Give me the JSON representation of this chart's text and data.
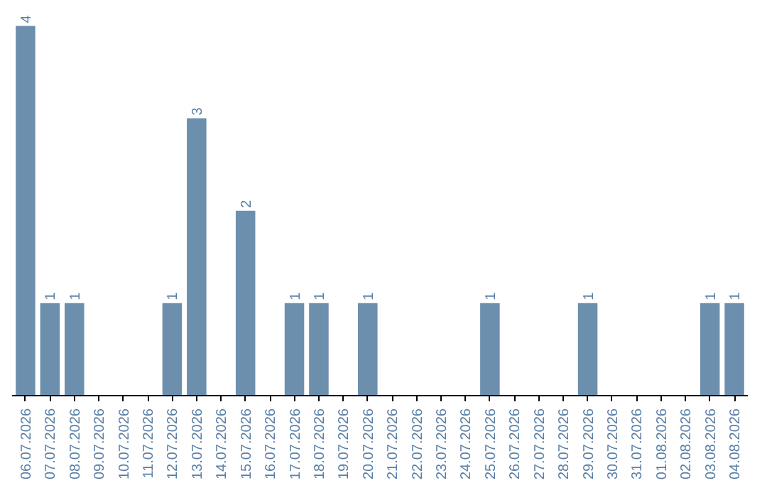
{
  "chart_data": {
    "type": "bar",
    "categories": [
      "06.07.2026",
      "07.07.2026",
      "08.07.2026",
      "09.07.2026",
      "10.07.2026",
      "11.07.2026",
      "12.07.2026",
      "13.07.2026",
      "14.07.2026",
      "15.07.2026",
      "16.07.2026",
      "17.07.2026",
      "18.07.2026",
      "19.07.2026",
      "20.07.2026",
      "21.07.2026",
      "22.07.2026",
      "23.07.2026",
      "24.07.2026",
      "25.07.2026",
      "26.07.2026",
      "27.07.2026",
      "28.07.2026",
      "29.07.2026",
      "30.07.2026",
      "31.07.2026",
      "01.08.2026",
      "02.08.2026",
      "03.08.2026",
      "04.08.2026"
    ],
    "values": [
      4,
      1,
      1,
      0,
      0,
      0,
      1,
      3,
      0,
      2,
      0,
      1,
      1,
      0,
      1,
      0,
      0,
      0,
      0,
      1,
      0,
      0,
      0,
      1,
      0,
      0,
      0,
      0,
      1,
      1
    ],
    "value_labels": [
      "4",
      "1",
      "1",
      null,
      null,
      null,
      "1",
      "3",
      null,
      "2",
      null,
      "1",
      "1",
      null,
      "1",
      null,
      null,
      null,
      null,
      "1",
      null,
      null,
      null,
      "1",
      null,
      null,
      null,
      null,
      "1",
      "1"
    ],
    "color": "#6d8fae",
    "grid": false,
    "tick_labels": "x"
  }
}
